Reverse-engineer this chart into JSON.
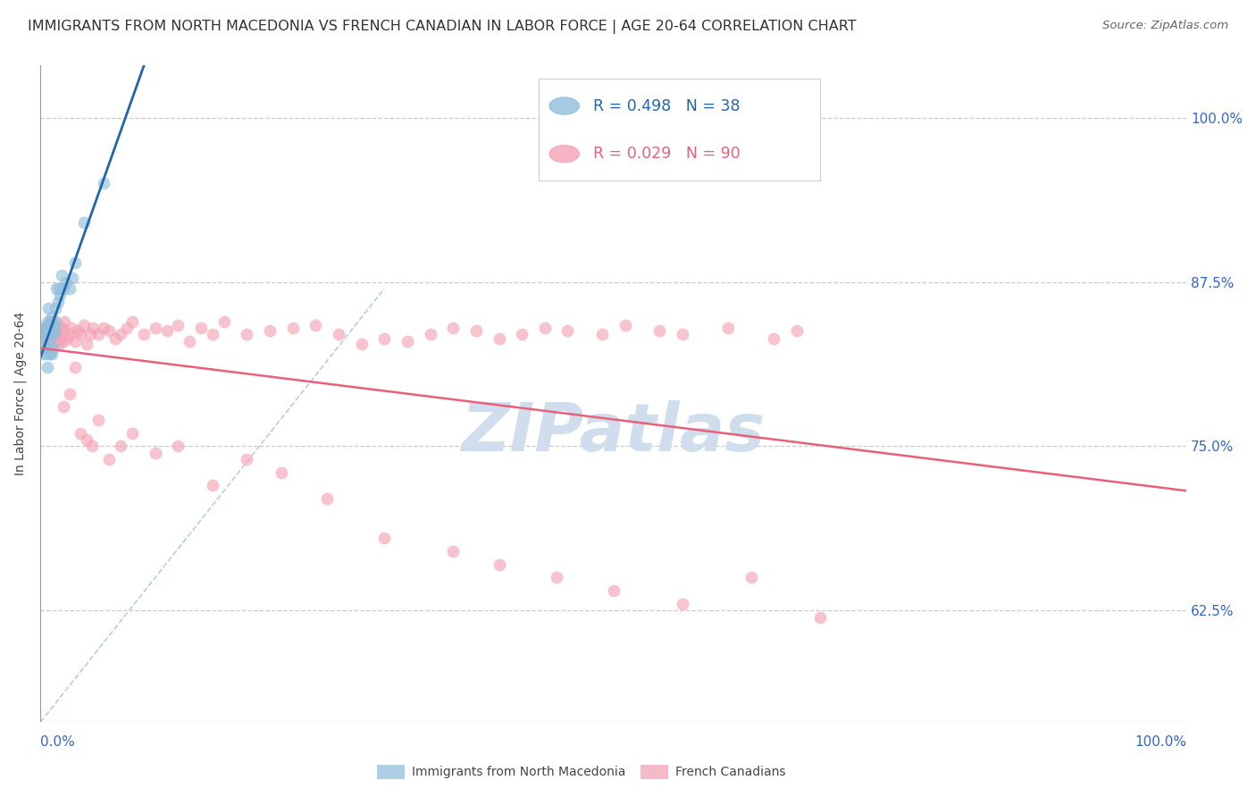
{
  "title": "IMMIGRANTS FROM NORTH MACEDONIA VS FRENCH CANADIAN IN LABOR FORCE | AGE 20-64 CORRELATION CHART",
  "source": "Source: ZipAtlas.com",
  "ylabel": "In Labor Force | Age 20-64",
  "legend_label_blue": "Immigrants from North Macedonia",
  "legend_label_pink": "French Canadians",
  "R_blue": 0.498,
  "N_blue": 38,
  "R_pink": 0.029,
  "N_pink": 90,
  "ytick_labels": [
    "62.5%",
    "75.0%",
    "87.5%",
    "100.0%"
  ],
  "ytick_values": [
    0.625,
    0.75,
    0.875,
    1.0
  ],
  "xlim": [
    0.0,
    1.0
  ],
  "ylim": [
    0.54,
    1.04
  ],
  "blue_color": "#91bfdb",
  "pink_color": "#f4a3b5",
  "trend_blue_color": "#2166ac",
  "trend_pink_color": "#e8607a",
  "diagonal_color": "#b8cce4",
  "watermark_color": "#cfdded",
  "title_fontsize": 11.5,
  "source_fontsize": 9.5,
  "axis_label_fontsize": 10,
  "tick_label_color": "#3366cc",
  "blue_x": [
    0.002,
    0.003,
    0.003,
    0.004,
    0.004,
    0.005,
    0.005,
    0.005,
    0.006,
    0.006,
    0.006,
    0.007,
    0.007,
    0.007,
    0.008,
    0.008,
    0.009,
    0.009,
    0.01,
    0.01,
    0.01,
    0.011,
    0.011,
    0.012,
    0.013,
    0.013,
    0.014,
    0.015,
    0.016,
    0.017,
    0.018,
    0.02,
    0.022,
    0.025,
    0.028,
    0.03,
    0.038,
    0.055
  ],
  "blue_y": [
    0.83,
    0.84,
    0.82,
    0.835,
    0.825,
    0.84,
    0.835,
    0.82,
    0.845,
    0.825,
    0.81,
    0.84,
    0.855,
    0.83,
    0.84,
    0.82,
    0.845,
    0.835,
    0.848,
    0.838,
    0.82,
    0.835,
    0.825,
    0.84,
    0.855,
    0.845,
    0.87,
    0.86,
    0.87,
    0.865,
    0.88,
    0.87,
    0.875,
    0.87,
    0.878,
    0.89,
    0.92,
    0.95
  ],
  "pink_x": [
    0.003,
    0.004,
    0.005,
    0.006,
    0.007,
    0.008,
    0.009,
    0.01,
    0.011,
    0.012,
    0.013,
    0.014,
    0.015,
    0.016,
    0.017,
    0.018,
    0.019,
    0.02,
    0.021,
    0.023,
    0.025,
    0.027,
    0.03,
    0.032,
    0.035,
    0.038,
    0.04,
    0.043,
    0.046,
    0.05,
    0.055,
    0.06,
    0.065,
    0.07,
    0.075,
    0.08,
    0.09,
    0.1,
    0.11,
    0.12,
    0.13,
    0.14,
    0.15,
    0.16,
    0.18,
    0.2,
    0.22,
    0.24,
    0.26,
    0.28,
    0.3,
    0.32,
    0.34,
    0.36,
    0.38,
    0.4,
    0.42,
    0.44,
    0.46,
    0.49,
    0.51,
    0.54,
    0.56,
    0.6,
    0.64,
    0.66,
    0.02,
    0.025,
    0.03,
    0.035,
    0.04,
    0.045,
    0.05,
    0.06,
    0.07,
    0.08,
    0.1,
    0.12,
    0.15,
    0.18,
    0.21,
    0.25,
    0.3,
    0.36,
    0.4,
    0.45,
    0.5,
    0.56,
    0.62,
    0.68
  ],
  "pink_y": [
    0.84,
    0.835,
    0.83,
    0.838,
    0.832,
    0.845,
    0.828,
    0.84,
    0.835,
    0.83,
    0.84,
    0.835,
    0.842,
    0.828,
    0.832,
    0.84,
    0.838,
    0.83,
    0.845,
    0.832,
    0.835,
    0.84,
    0.83,
    0.838,
    0.835,
    0.842,
    0.828,
    0.835,
    0.84,
    0.835,
    0.84,
    0.838,
    0.832,
    0.835,
    0.84,
    0.845,
    0.835,
    0.84,
    0.838,
    0.842,
    0.83,
    0.84,
    0.835,
    0.845,
    0.835,
    0.838,
    0.84,
    0.842,
    0.835,
    0.828,
    0.832,
    0.83,
    0.835,
    0.84,
    0.838,
    0.832,
    0.835,
    0.84,
    0.838,
    0.835,
    0.842,
    0.838,
    0.835,
    0.84,
    0.832,
    0.838,
    0.78,
    0.79,
    0.81,
    0.76,
    0.755,
    0.75,
    0.77,
    0.74,
    0.75,
    0.76,
    0.745,
    0.75,
    0.72,
    0.74,
    0.73,
    0.71,
    0.68,
    0.67,
    0.66,
    0.65,
    0.64,
    0.63,
    0.65,
    0.62
  ],
  "scatter_size": 100
}
